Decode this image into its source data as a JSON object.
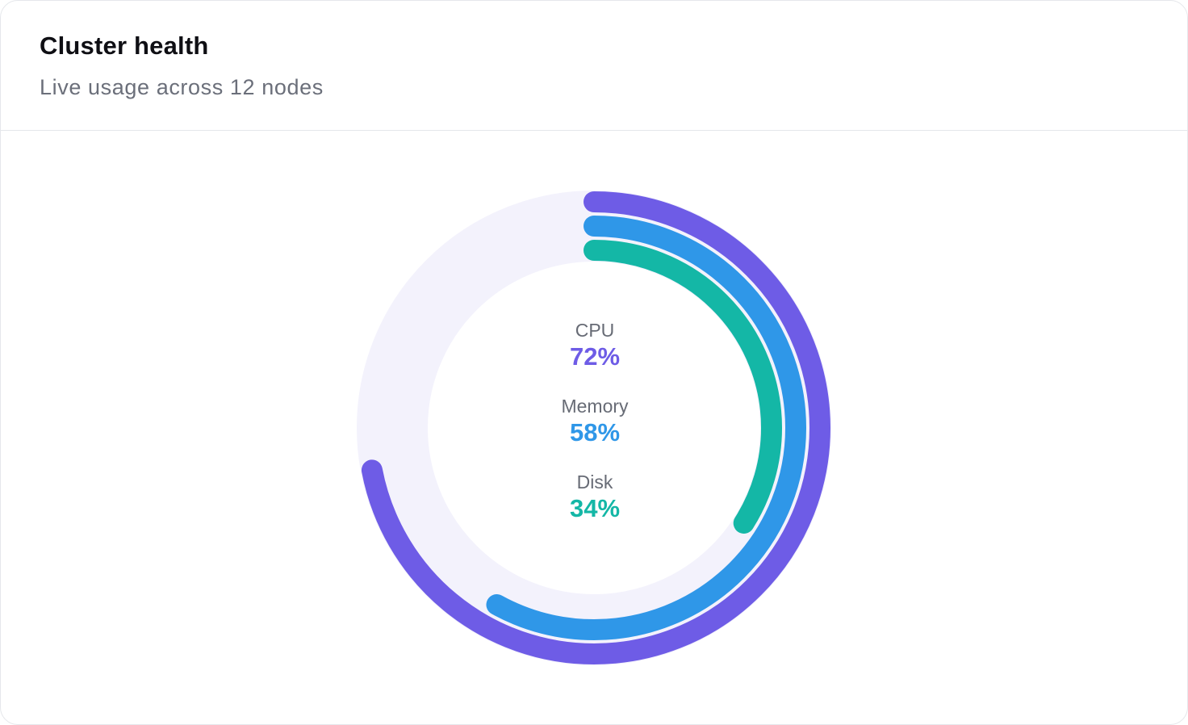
{
  "card": {
    "title": "Cluster health",
    "subtitle": "Live usage across 12 nodes"
  },
  "chart_data": {
    "type": "radial-bar",
    "series": [
      {
        "name": "CPU",
        "value": 72,
        "display": "72%",
        "color": "#6e5ce6"
      },
      {
        "name": "Memory",
        "value": 58,
        "display": "58%",
        "color": "#2f97e8"
      },
      {
        "name": "Disk",
        "value": 34,
        "display": "34%",
        "color": "#14b7a6"
      }
    ],
    "max": 100,
    "track_color": "#f3f2fc"
  }
}
